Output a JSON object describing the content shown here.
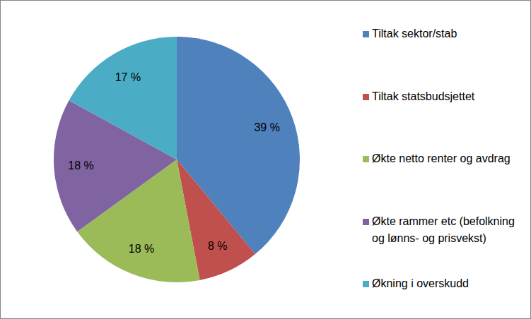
{
  "chart_data": {
    "type": "pie",
    "categories": [
      "Tiltak sektor/stab",
      "Tiltak statsbudsjettet",
      "Økte netto renter og avdrag",
      "Økte rammer etc (befolkning og lønns- og prisvekst)",
      "Økning i overskudd"
    ],
    "values": [
      39,
      8,
      18,
      18,
      17
    ],
    "value_labels": [
      "39 %",
      "8 %",
      "18 %",
      "18 %",
      "17 %"
    ],
    "colors": [
      "#4f81bd",
      "#c0504d",
      "#9bbb59",
      "#8064a2",
      "#4bacc6"
    ],
    "data_labels": true,
    "legend": "right"
  }
}
